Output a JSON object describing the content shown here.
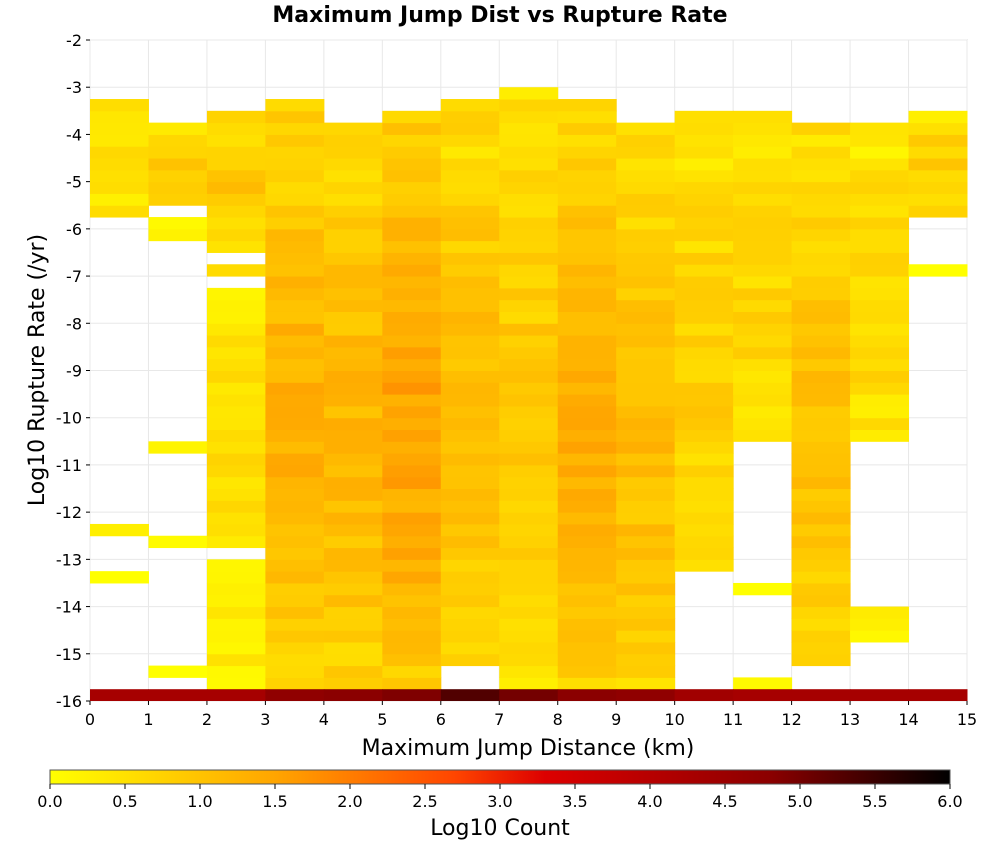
{
  "chart_data": {
    "type": "heatmap",
    "title": "Maximum Jump Dist vs Rupture Rate",
    "xlabel": "Maximum Jump Distance (km)",
    "ylabel": "Log10 Rupture Rate (/yr)",
    "xlim": [
      0,
      15
    ],
    "ylim": [
      -16,
      -2
    ],
    "x_ticks": [
      "0",
      "1",
      "2",
      "3",
      "4",
      "5",
      "6",
      "7",
      "8",
      "9",
      "10",
      "11",
      "12",
      "13",
      "14",
      "15"
    ],
    "y_ticks": [
      "-2",
      "-3",
      "-4",
      "-5",
      "-6",
      "-7",
      "-8",
      "-9",
      "-10",
      "-11",
      "-12",
      "-13",
      "-14",
      "-15",
      "-16"
    ],
    "grid": true,
    "x_bin_width": 1,
    "y_bin_width": 0.25,
    "colorbar": {
      "label": "Log10 Count",
      "range": [
        0,
        6
      ],
      "tick_labels": [
        "0.0",
        "0.5",
        "1.0",
        "1.5",
        "2.0",
        "2.5",
        "3.0",
        "3.5",
        "4.0",
        "4.5",
        "5.0",
        "5.5",
        "6.0"
      ],
      "colors": [
        "#ffff00",
        "#ffa500",
        "#ff4500",
        "#dd0000",
        "#8b0000",
        "#000000"
      ]
    },
    "columns": [
      {
        "x": 0,
        "y_min": -5.75,
        "y_max": -3.25,
        "log10_count": 0.6
      },
      {
        "x": 0,
        "y_min": -12.5,
        "y_max": -12.25,
        "log10_count": 0.1
      },
      {
        "x": 0,
        "y_min": -13.5,
        "y_max": -13.25,
        "log10_count": 0.1
      },
      {
        "x": 1,
        "y_min": -5.5,
        "y_max": -3.75,
        "log10_count": 0.8
      },
      {
        "x": 1,
        "y_min": -6.25,
        "y_max": -5.75,
        "log10_count": 0.1
      },
      {
        "x": 1,
        "y_min": -10.75,
        "y_max": -10.5,
        "log10_count": 0.1
      },
      {
        "x": 1,
        "y_min": -12.75,
        "y_max": -12.5,
        "log10_count": 0.1
      },
      {
        "x": 1,
        "y_min": -15.5,
        "y_max": -15.25,
        "log10_count": 0.1
      },
      {
        "x": 2,
        "y_min": -6.5,
        "y_max": -3.5,
        "log10_count": 0.9
      },
      {
        "x": 2,
        "y_min": -7.0,
        "y_max": -6.75,
        "log10_count": 0.4
      },
      {
        "x": 2,
        "y_min": -12.75,
        "y_max": -7.25,
        "log10_count": 0.6
      },
      {
        "x": 2,
        "y_min": -15.75,
        "y_max": -13.0,
        "log10_count": 0.4
      },
      {
        "x": 3,
        "y_min": -15.75,
        "y_max": -3.25,
        "log10_count": 1.3
      },
      {
        "x": 4,
        "y_min": -15.75,
        "y_max": -3.75,
        "log10_count": 1.2
      },
      {
        "x": 5,
        "y_min": -15.75,
        "y_max": -3.5,
        "log10_count": 1.5
      },
      {
        "x": 6,
        "y_min": -15.25,
        "y_max": -3.25,
        "log10_count": 1.1
      },
      {
        "x": 7,
        "y_min": -15.75,
        "y_max": -3.0,
        "log10_count": 0.9
      },
      {
        "x": 8,
        "y_min": -15.75,
        "y_max": -3.25,
        "log10_count": 1.3
      },
      {
        "x": 9,
        "y_min": -15.75,
        "y_max": -3.75,
        "log10_count": 1.1
      },
      {
        "x": 10,
        "y_min": -13.25,
        "y_max": -3.5,
        "log10_count": 0.8
      },
      {
        "x": 11,
        "y_min": -10.5,
        "y_max": -3.5,
        "log10_count": 0.7
      },
      {
        "x": 11,
        "y_min": -13.75,
        "y_max": -13.5,
        "log10_count": 0.2
      },
      {
        "x": 11,
        "y_min": -15.75,
        "y_max": -15.5,
        "log10_count": 0.1
      },
      {
        "x": 12,
        "y_min": -15.25,
        "y_max": -3.75,
        "log10_count": 1.0
      },
      {
        "x": 13,
        "y_min": -10.5,
        "y_max": -3.75,
        "log10_count": 0.7
      },
      {
        "x": 13,
        "y_min": -14.75,
        "y_max": -14.0,
        "log10_count": 0.2
      },
      {
        "x": 14,
        "y_min": -5.75,
        "y_max": -3.5,
        "log10_count": 0.8
      },
      {
        "x": 14,
        "y_min": -7.0,
        "y_max": -6.75,
        "log10_count": 0.1
      }
    ],
    "bottom_row": {
      "y_min": -16.0,
      "y_max": -15.75,
      "log10_count_by_x": [
        4.3,
        4.3,
        4.3,
        4.7,
        4.8,
        4.9,
        5.3,
        5.0,
        4.8,
        4.7,
        4.4,
        4.3,
        4.3,
        4.3,
        4.3
      ]
    }
  }
}
